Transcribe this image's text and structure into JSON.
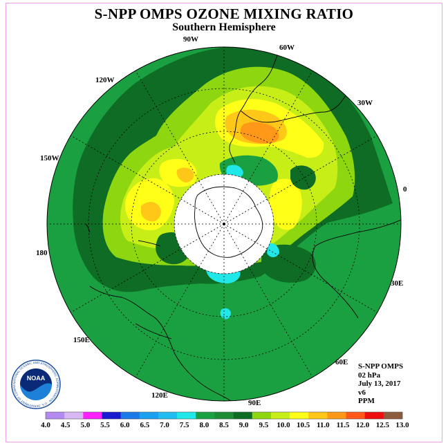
{
  "title": "S-NPP OMPS OZONE MIXING RATIO",
  "subtitle": "Southern Hemisphere",
  "longitude_labels": [
    "90W",
    "60W",
    "30W",
    "0",
    "30E",
    "60E",
    "90E",
    "120E",
    "150E",
    "180",
    "150W",
    "120W"
  ],
  "info": {
    "instrument": "S-NPP OMPS",
    "level": "02 hPa",
    "date": "July 13, 2017",
    "version": "v6",
    "units": "PPM"
  },
  "logo": {
    "name": "NOAA",
    "ring_text": "NATIONAL OCEANIC AND ATMOSPHERIC ADMINISTRATION · U.S. DEPARTMENT OF COMMERCE"
  },
  "colorbar": {
    "ticks": [
      "4.0",
      "4.5",
      "5.0",
      "5.5",
      "6.0",
      "6.5",
      "7.0",
      "7.5",
      "8.0",
      "8.5",
      "9.0",
      "9.5",
      "10.0",
      "10.5",
      "11.0",
      "11.5",
      "12.0",
      "12.5",
      "13.0"
    ],
    "colors": [
      "#b38af0",
      "#d8b8f4",
      "#ff20ff",
      "#1a1ad0",
      "#1a7ae8",
      "#1aa0f0",
      "#20bef0",
      "#20e8e8",
      "#1aa040",
      "#1e8c34",
      "#0e6c24",
      "#8ed610",
      "#c8ee18",
      "#ffff18",
      "#ffc818",
      "#ff9818",
      "#ff5818",
      "#ee0e0e",
      "#8c5a3c"
    ]
  }
}
